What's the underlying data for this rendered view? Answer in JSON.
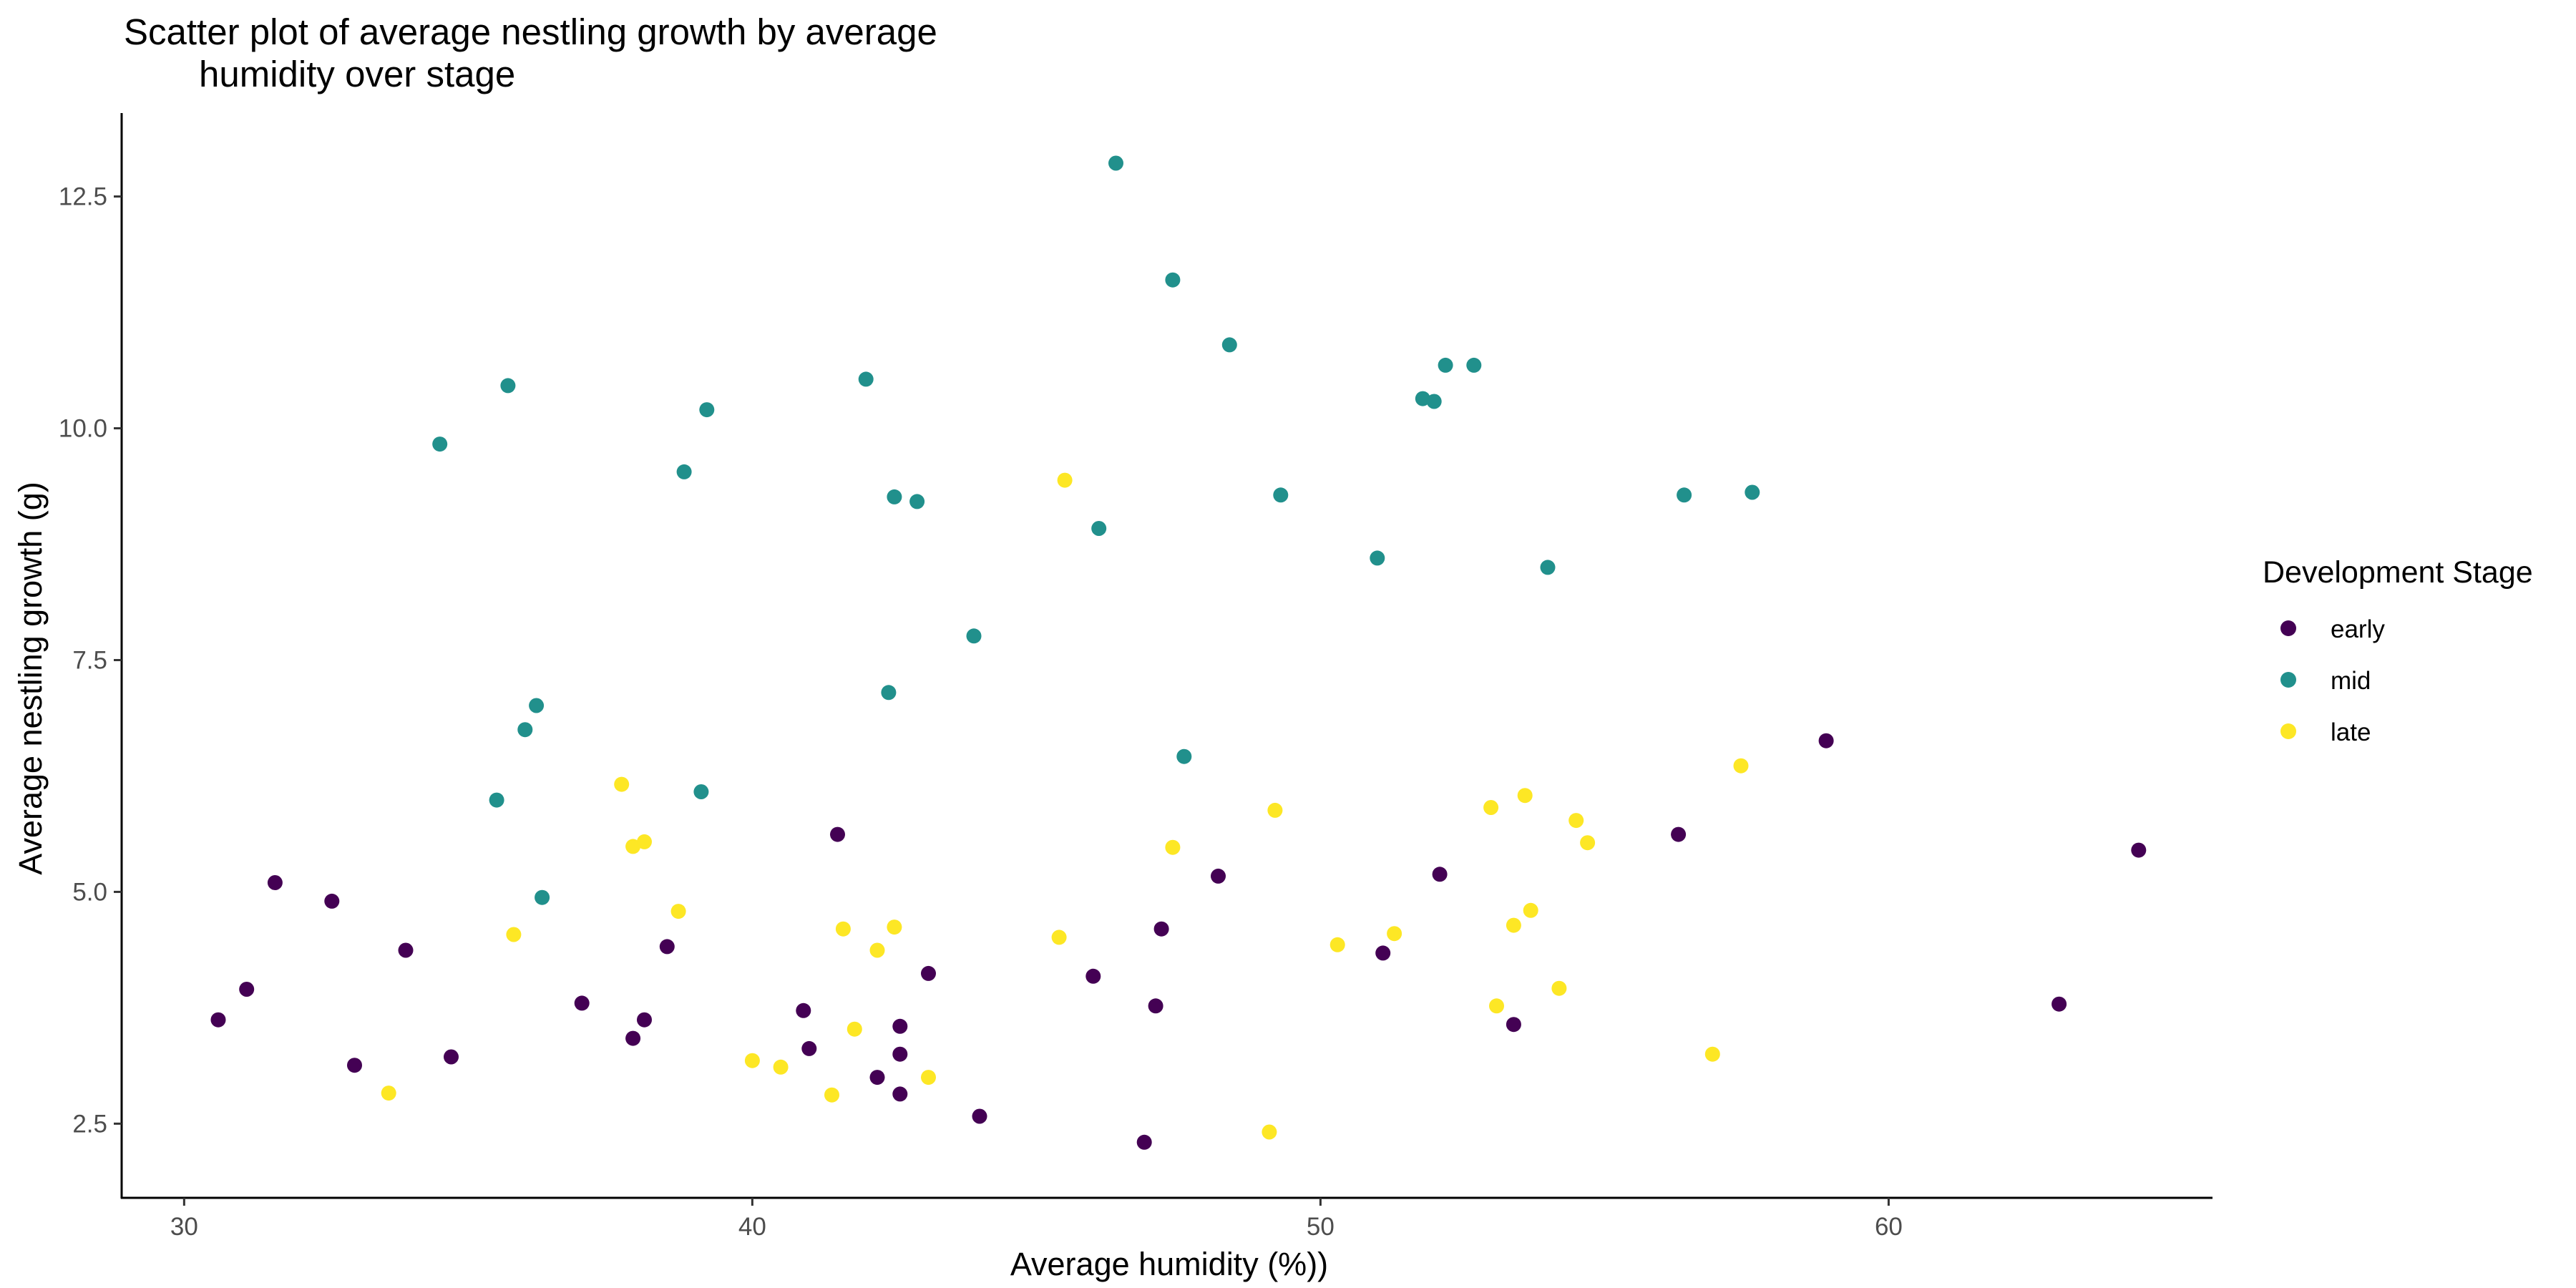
{
  "chart_data": {
    "type": "scatter",
    "title_lines": [
      "Scatter plot of average nestling growth by average",
      "humidity over stage"
    ],
    "xlabel": "Average humidity (%))",
    "ylabel": "Average nestling growth (g)",
    "xlim": [
      28.9,
      65.7
    ],
    "ylim": [
      1.7,
      13.4
    ],
    "x_ticks": [
      30,
      40,
      50,
      60
    ],
    "x_tick_labels": [
      "30",
      "40",
      "50",
      "60"
    ],
    "y_ticks": [
      2.5,
      5.0,
      7.5,
      10.0,
      12.5
    ],
    "y_tick_labels": [
      "2.5",
      "5.0",
      "7.5",
      "10.0",
      "12.5"
    ],
    "grid": false,
    "legend": {
      "title": "Development Stage",
      "position": "right"
    },
    "series": [
      {
        "name": "early",
        "color": "#440154",
        "points": [
          [
            30.6,
            3.62
          ],
          [
            31.1,
            3.95
          ],
          [
            31.6,
            5.1
          ],
          [
            32.6,
            4.9
          ],
          [
            33.0,
            3.13
          ],
          [
            33.9,
            4.37
          ],
          [
            34.7,
            3.22
          ],
          [
            37.0,
            3.8
          ],
          [
            37.9,
            3.42
          ],
          [
            38.1,
            3.62
          ],
          [
            38.5,
            4.41
          ],
          [
            40.9,
            3.72
          ],
          [
            41.0,
            3.31
          ],
          [
            41.5,
            5.62
          ],
          [
            42.2,
            3.0
          ],
          [
            42.6,
            3.25
          ],
          [
            42.6,
            3.55
          ],
          [
            42.6,
            2.82
          ],
          [
            43.1,
            4.12
          ],
          [
            44.0,
            2.58
          ],
          [
            46.0,
            4.09
          ],
          [
            46.9,
            2.3
          ],
          [
            47.1,
            3.77
          ],
          [
            47.2,
            4.6
          ],
          [
            48.2,
            5.17
          ],
          [
            51.1,
            4.34
          ],
          [
            52.1,
            5.19
          ],
          [
            53.4,
            3.57
          ],
          [
            56.3,
            5.62
          ],
          [
            58.9,
            6.63
          ],
          [
            63.0,
            3.79
          ],
          [
            64.4,
            5.45
          ]
        ]
      },
      {
        "name": "mid",
        "color": "#21908C",
        "points": [
          [
            34.5,
            9.83
          ],
          [
            35.5,
            5.99
          ],
          [
            35.7,
            10.46
          ],
          [
            36.0,
            6.75
          ],
          [
            36.2,
            7.01
          ],
          [
            36.3,
            4.94
          ],
          [
            38.8,
            9.53
          ],
          [
            39.1,
            6.08
          ],
          [
            39.2,
            10.2
          ],
          [
            42.0,
            10.53
          ],
          [
            42.4,
            7.15
          ],
          [
            42.5,
            9.26
          ],
          [
            42.9,
            9.21
          ],
          [
            43.9,
            7.76
          ],
          [
            46.1,
            8.92
          ],
          [
            46.4,
            12.86
          ],
          [
            47.4,
            11.6
          ],
          [
            47.6,
            6.46
          ],
          [
            48.4,
            10.9
          ],
          [
            49.3,
            9.28
          ],
          [
            51.0,
            8.6
          ],
          [
            51.8,
            10.32
          ],
          [
            52.0,
            10.29
          ],
          [
            52.2,
            10.68
          ],
          [
            52.7,
            10.68
          ],
          [
            54.0,
            8.5
          ],
          [
            56.4,
            9.28
          ],
          [
            57.6,
            9.31
          ]
        ]
      },
      {
        "name": "late",
        "color": "#FDE725",
        "points": [
          [
            33.6,
            2.83
          ],
          [
            35.8,
            4.54
          ],
          [
            37.7,
            6.16
          ],
          [
            37.9,
            5.49
          ],
          [
            38.1,
            5.54
          ],
          [
            38.7,
            4.79
          ],
          [
            40.0,
            3.18
          ],
          [
            40.5,
            3.11
          ],
          [
            41.4,
            2.81
          ],
          [
            41.6,
            4.6
          ],
          [
            41.8,
            3.52
          ],
          [
            42.2,
            4.37
          ],
          [
            42.5,
            4.62
          ],
          [
            43.1,
            3.0
          ],
          [
            45.4,
            4.51
          ],
          [
            45.5,
            9.44
          ],
          [
            47.4,
            5.48
          ],
          [
            49.1,
            2.41
          ],
          [
            49.2,
            5.88
          ],
          [
            50.3,
            4.43
          ],
          [
            51.3,
            4.55
          ],
          [
            53.0,
            5.91
          ],
          [
            53.1,
            3.77
          ],
          [
            53.4,
            4.64
          ],
          [
            53.6,
            6.04
          ],
          [
            53.7,
            4.8
          ],
          [
            54.2,
            3.96
          ],
          [
            54.5,
            5.77
          ],
          [
            54.7,
            5.53
          ],
          [
            56.9,
            3.25
          ],
          [
            57.4,
            6.36
          ]
        ]
      }
    ]
  }
}
